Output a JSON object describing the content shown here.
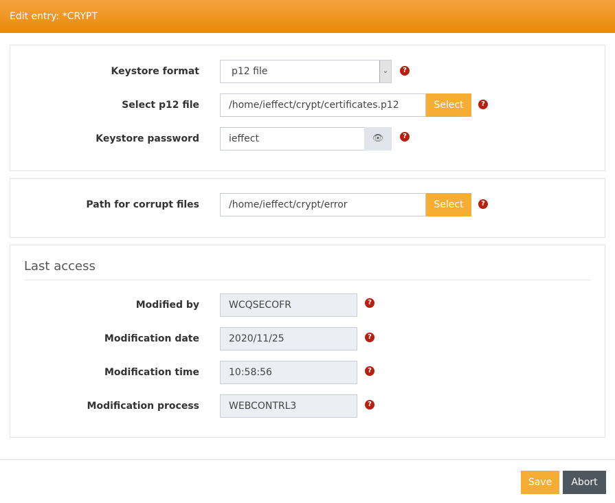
{
  "header": {
    "title": "Edit entry: *CRYPT"
  },
  "keystore": {
    "format_label": "Keystore format",
    "format_value": "p12 file",
    "file_label": "Select p12 file",
    "file_value": "/home/ieffect/crypt/certificates.p12",
    "password_label": "Keystore password",
    "password_value": "ieffect",
    "select_label": "Select"
  },
  "corrupt": {
    "label": "Path for corrupt files",
    "value": "/home/ieffect/crypt/error",
    "select_label": "Select"
  },
  "last_access": {
    "title": "Last access",
    "fields": [
      {
        "label": "Modified by",
        "value": "WCQSECOFR"
      },
      {
        "label": "Modification date",
        "value": "2020/11/25"
      },
      {
        "label": "Modification time",
        "value": "10:58:56"
      },
      {
        "label": "Modification process",
        "value": "WEBCONTRL3"
      }
    ]
  },
  "help_glyph": "?",
  "footer": {
    "save": "Save",
    "abort": "Abort"
  },
  "colors": {
    "header": "#ee8f0c",
    "button": "#f6ad33",
    "abort": "#4f575e",
    "help": "#b7200f"
  }
}
